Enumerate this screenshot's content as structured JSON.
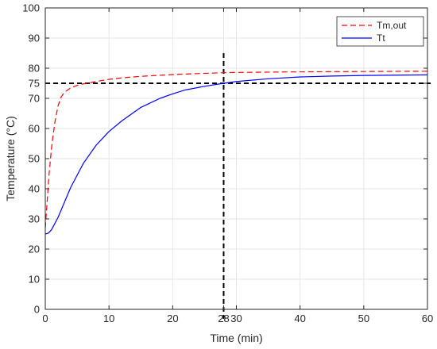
{
  "chart_data": {
    "type": "line",
    "title": "",
    "xlabel": "Time (min)",
    "ylabel": "Temperature (°C)",
    "xlim": [
      0,
      60
    ],
    "ylim": [
      0,
      100
    ],
    "x_ticks": [
      0,
      10,
      20,
      28,
      30,
      40,
      50,
      60
    ],
    "y_ticks": [
      0,
      10,
      20,
      30,
      40,
      50,
      60,
      70,
      75,
      80,
      90,
      100
    ],
    "grid": true,
    "legend_position": "top-right",
    "series": [
      {
        "name": "Tm,out",
        "color": "#ff0000",
        "line_style": "dashed",
        "x": [
          0,
          0.3,
          0.6,
          1,
          1.5,
          2,
          2.5,
          3,
          4,
          5,
          6,
          8,
          10,
          12,
          15,
          20,
          25,
          28,
          30,
          35,
          40,
          45,
          50,
          55,
          60
        ],
        "y": [
          27,
          36,
          45,
          54,
          62,
          67.5,
          70.5,
          72,
          73.5,
          74.3,
          74.8,
          75.6,
          76.3,
          76.8,
          77.3,
          77.9,
          78.3,
          78.5,
          78.6,
          78.7,
          78.8,
          78.85,
          78.9,
          78.95,
          79
        ]
      },
      {
        "name": "Tt",
        "color": "#0000ff",
        "line_style": "solid",
        "x": [
          0,
          0.5,
          1,
          2,
          3,
          4,
          5,
          6,
          8,
          10,
          12,
          15,
          18,
          20,
          22,
          25,
          28,
          30,
          35,
          40,
          45,
          50,
          55,
          60
        ],
        "y": [
          25,
          25.3,
          26.5,
          30.5,
          35.5,
          40.5,
          44.5,
          48.5,
          54.5,
          59,
          62.5,
          67,
          70,
          71.5,
          72.8,
          74,
          75,
          75.6,
          76.5,
          77.1,
          77.4,
          77.6,
          77.7,
          77.8
        ]
      }
    ],
    "reference_lines": [
      {
        "orientation": "vertical",
        "value": 28,
        "color": "#000000",
        "line_style": "dashed"
      },
      {
        "orientation": "horizontal",
        "value": 75,
        "color": "#000000",
        "line_style": "dashed"
      }
    ]
  }
}
